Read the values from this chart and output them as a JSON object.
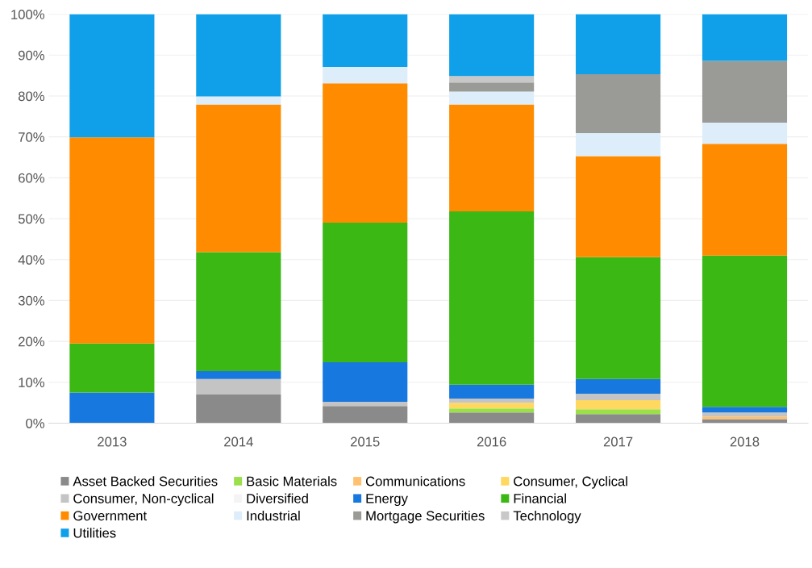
{
  "chart_data": {
    "type": "bar",
    "stacked": true,
    "categories": [
      "2013",
      "2014",
      "2015",
      "2016",
      "2017",
      "2018"
    ],
    "ylim": [
      0,
      100
    ],
    "yticks": [
      {
        "value": 0,
        "label": "0%"
      },
      {
        "value": 10,
        "label": "10%"
      },
      {
        "value": 20,
        "label": "20%"
      },
      {
        "value": 30,
        "label": "30%"
      },
      {
        "value": 40,
        "label": "40%"
      },
      {
        "value": 50,
        "label": "50%"
      },
      {
        "value": 60,
        "label": "60%"
      },
      {
        "value": 70,
        "label": "70%"
      },
      {
        "value": 80,
        "label": "80%"
      },
      {
        "value": 90,
        "label": "90%"
      },
      {
        "value": 100,
        "label": "100%"
      }
    ],
    "grid": "y",
    "legend": "bottom",
    "series": [
      {
        "name": "Asset Backed Securities",
        "color": "#8a8a8a",
        "values": [
          null,
          7.0,
          4.2,
          2.6,
          2.2,
          1.0
        ]
      },
      {
        "name": "Basic Materials",
        "color": "#9be04a",
        "values": [
          null,
          null,
          null,
          1.0,
          1.2,
          null
        ]
      },
      {
        "name": "Communications",
        "color": "#ffc070",
        "values": [
          null,
          null,
          null,
          null,
          null,
          0.6
        ]
      },
      {
        "name": "Consumer, Cyclical",
        "color": "#ffd860",
        "values": [
          null,
          null,
          null,
          1.4,
          2.2,
          null
        ]
      },
      {
        "name": "Consumer, Non-cyclical",
        "color": "#c4c4c4",
        "values": [
          null,
          3.8,
          1.0,
          1.0,
          1.6,
          1.0
        ]
      },
      {
        "name": "Diversified",
        "color": "#f4f4f4",
        "values": [
          null,
          null,
          null,
          null,
          null,
          null
        ]
      },
      {
        "name": "Energy",
        "color": "#1778e0",
        "values": [
          7.5,
          1.9,
          9.7,
          3.4,
          3.6,
          1.4
        ]
      },
      {
        "name": "Financial",
        "color": "#3cb815",
        "values": [
          12.0,
          29.1,
          34.1,
          42.4,
          29.8,
          37.0
        ]
      },
      {
        "name": "Government",
        "color": "#ff8c00",
        "values": [
          50.4,
          36.1,
          34.1,
          26.1,
          24.7,
          27.3
        ]
      },
      {
        "name": "Industrial",
        "color": "#ddeefa",
        "values": [
          null,
          2.0,
          4.0,
          3.2,
          5.6,
          5.2
        ]
      },
      {
        "name": "Mortgage Securities",
        "color": "#9a9b96",
        "values": [
          null,
          null,
          null,
          2.2,
          14.4,
          15.1
        ]
      },
      {
        "name": "Technology",
        "color": "#c8c8c8",
        "values": [
          null,
          null,
          null,
          1.6,
          null,
          null
        ]
      },
      {
        "name": "Utilities",
        "color": "#10a0ea",
        "values": [
          30.1,
          20.1,
          12.9,
          15.1,
          14.7,
          11.4
        ]
      }
    ]
  }
}
